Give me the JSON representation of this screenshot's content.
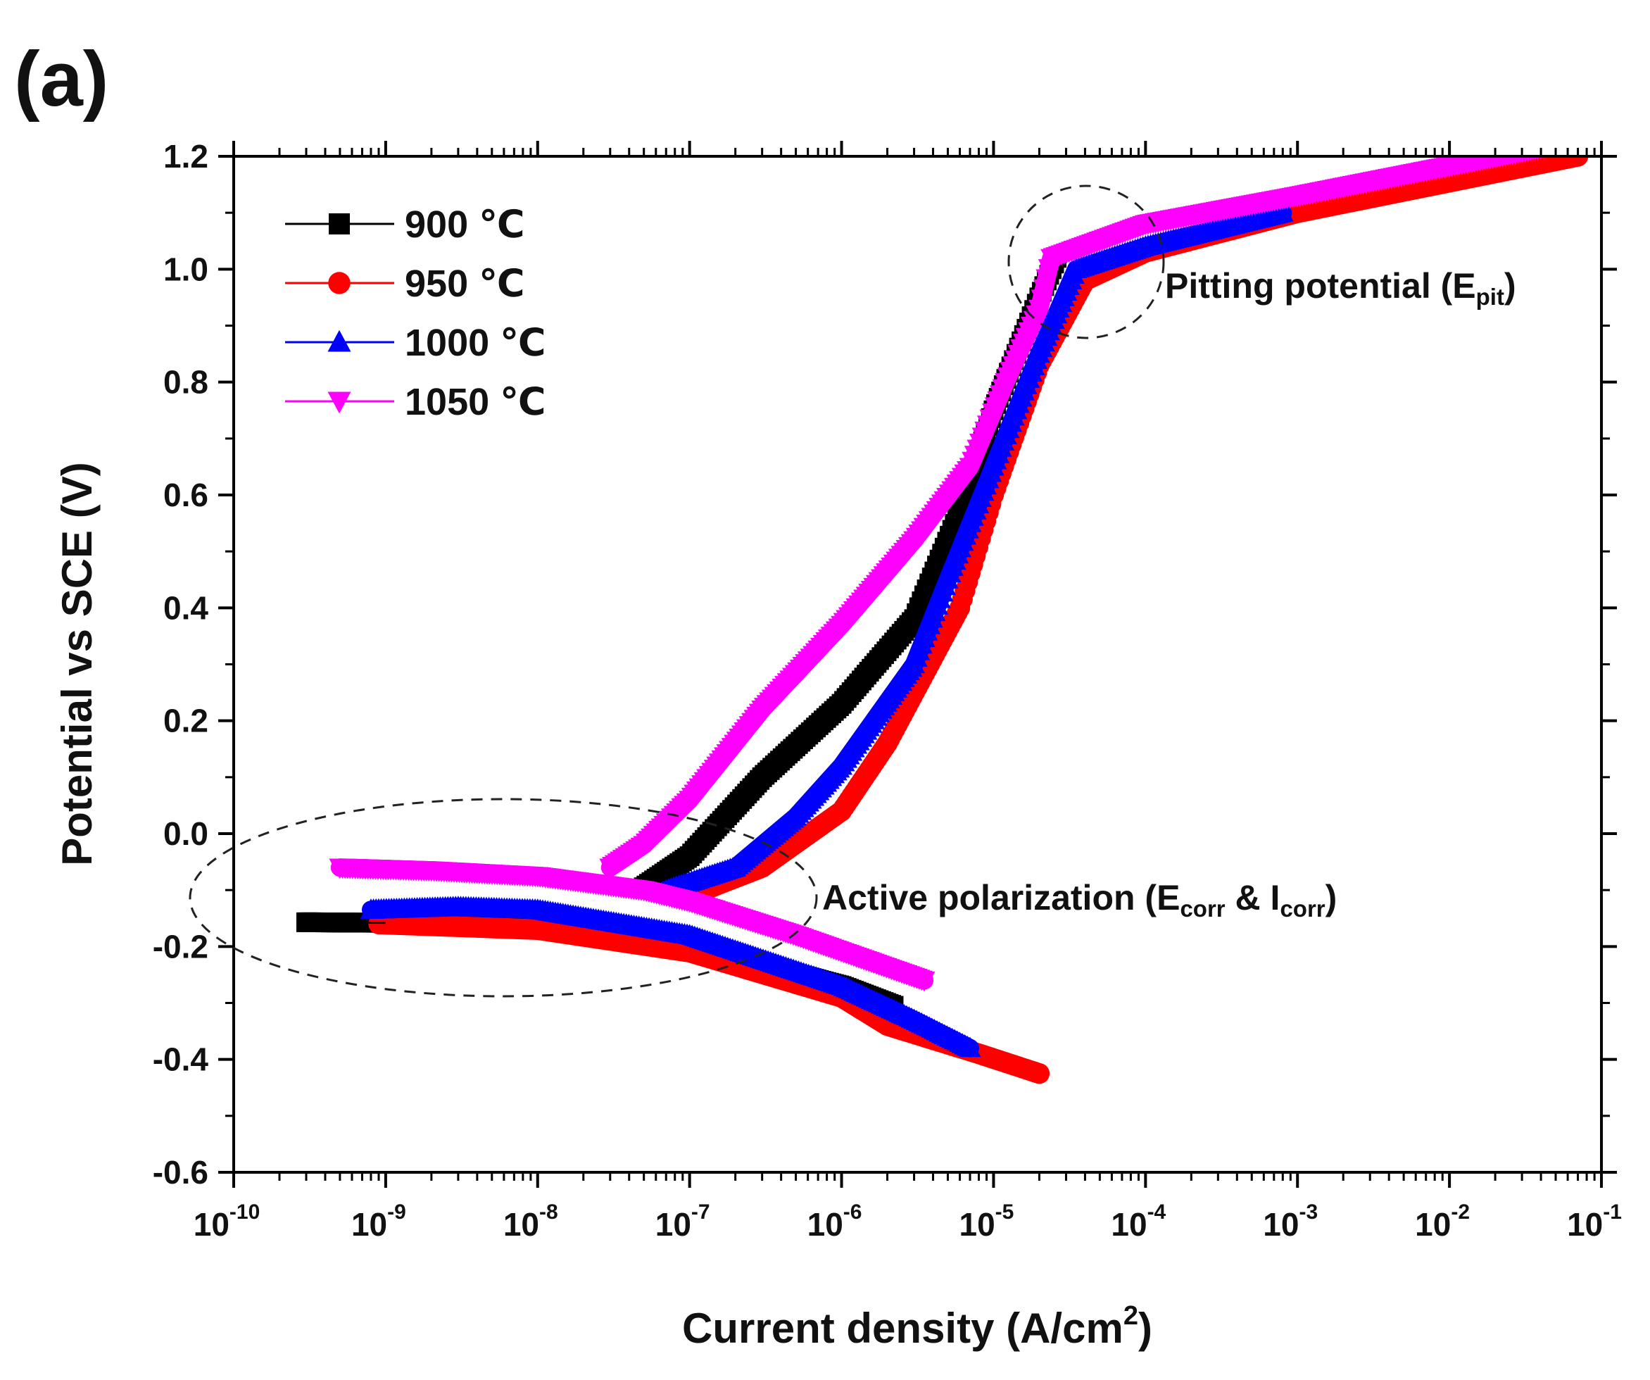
{
  "panel_label": "(a)",
  "chart_data": {
    "type": "line",
    "x_scale": "log",
    "xlim": [
      1e-10,
      0.1
    ],
    "ylim": [
      -0.6,
      1.2
    ],
    "xlabel": "Current density (A/cm",
    "xlabel_sup": "2",
    "xlabel_close": ")",
    "ylabel": "Potential vs SCE (V)",
    "x_tick_labels": [
      {
        "base": "10",
        "exp": "-10",
        "value": 1e-10
      },
      {
        "base": "10",
        "exp": "-9",
        "value": 1e-09
      },
      {
        "base": "10",
        "exp": "-8",
        "value": 1e-08
      },
      {
        "base": "10",
        "exp": "-7",
        "value": 1e-07
      },
      {
        "base": "10",
        "exp": "-6",
        "value": 1e-06
      },
      {
        "base": "10",
        "exp": "-5",
        "value": 1e-05
      },
      {
        "base": "10",
        "exp": "-4",
        "value": 0.0001
      },
      {
        "base": "10",
        "exp": "-3",
        "value": 0.001
      },
      {
        "base": "10",
        "exp": "-2",
        "value": 0.01
      },
      {
        "base": "10",
        "exp": "-1",
        "value": 0.1
      }
    ],
    "y_tick_labels": [
      {
        "label": "1.2",
        "value": 1.2
      },
      {
        "label": "1.0",
        "value": 1.0
      },
      {
        "label": "0.8",
        "value": 0.8
      },
      {
        "label": "0.6",
        "value": 0.6
      },
      {
        "label": "0.4",
        "value": 0.4
      },
      {
        "label": "0.2",
        "value": 0.2
      },
      {
        "label": "0.0",
        "value": 0.0
      },
      {
        "label": "-0.2",
        "value": -0.2
      },
      {
        "label": "-0.4",
        "value": -0.4
      },
      {
        "label": "-0.6",
        "value": -0.6
      }
    ],
    "legend_position": "top-left",
    "series": [
      {
        "name": "900 ℃",
        "color": "#000000",
        "marker": "square",
        "cathodic": [
          [
            3e-10,
            -0.157
          ],
          [
            1e-09,
            -0.158
          ],
          [
            1e-08,
            -0.163
          ],
          [
            1e-07,
            -0.2
          ],
          [
            1e-06,
            -0.27
          ],
          [
            2.2e-06,
            -0.305
          ]
        ],
        "anodic": [
          [
            5e-08,
            -0.095
          ],
          [
            1e-07,
            -0.04
          ],
          [
            3e-07,
            0.1
          ],
          [
            1e-06,
            0.23
          ],
          [
            3e-06,
            0.38
          ],
          [
            6e-06,
            0.57
          ],
          [
            1e-05,
            0.75
          ],
          [
            2e-05,
            0.95
          ],
          [
            2.6e-05,
            1.02
          ]
        ]
      },
      {
        "name": "950 ℃",
        "color": "#ff0000",
        "marker": "circle",
        "cathodic": [
          [
            9e-10,
            -0.16
          ],
          [
            1e-08,
            -0.17
          ],
          [
            1e-07,
            -0.21
          ],
          [
            1e-06,
            -0.29
          ],
          [
            2e-06,
            -0.34
          ],
          [
            8e-06,
            -0.39
          ],
          [
            2e-05,
            -0.425
          ]
        ],
        "anodic": [
          [
            1e-07,
            -0.11
          ],
          [
            3e-07,
            -0.06
          ],
          [
            1e-06,
            0.04
          ],
          [
            2e-06,
            0.16
          ],
          [
            6e-06,
            0.4
          ],
          [
            1e-05,
            0.6
          ],
          [
            2e-05,
            0.83
          ],
          [
            4e-05,
            0.98
          ],
          [
            0.0001,
            1.03
          ],
          [
            0.001,
            1.1
          ],
          [
            0.07,
            1.2
          ]
        ]
      },
      {
        "name": "1000 ℃",
        "color": "#0000ff",
        "marker": "triangle-up",
        "cathodic": [
          [
            8e-10,
            -0.135
          ],
          [
            3e-09,
            -0.13
          ],
          [
            1e-08,
            -0.135
          ],
          [
            1e-07,
            -0.18
          ],
          [
            1e-06,
            -0.27
          ],
          [
            3e-06,
            -0.33
          ],
          [
            7e-06,
            -0.38
          ]
        ],
        "anodic": [
          [
            7e-08,
            -0.1
          ],
          [
            2e-07,
            -0.06
          ],
          [
            5e-07,
            0.03
          ],
          [
            1e-06,
            0.12
          ],
          [
            3e-06,
            0.3
          ],
          [
            5e-06,
            0.45
          ],
          [
            1e-05,
            0.65
          ],
          [
            2e-05,
            0.85
          ],
          [
            3.5e-05,
            1.0
          ],
          [
            0.0001,
            1.04
          ],
          [
            0.0008,
            1.1
          ]
        ]
      },
      {
        "name": "1050 ℃",
        "color": "#ff00ff",
        "marker": "triangle-down",
        "cathodic": [
          [
            5e-10,
            -0.06
          ],
          [
            2e-09,
            -0.065
          ],
          [
            1e-08,
            -0.075
          ],
          [
            5e-08,
            -0.1
          ],
          [
            1e-07,
            -0.12
          ],
          [
            5e-07,
            -0.18
          ],
          [
            3.5e-06,
            -0.26
          ]
        ],
        "anodic": [
          [
            3e-08,
            -0.06
          ],
          [
            5e-08,
            -0.02
          ],
          [
            1e-07,
            0.06
          ],
          [
            3e-07,
            0.22
          ],
          [
            1e-06,
            0.37
          ],
          [
            3e-06,
            0.52
          ],
          [
            7e-06,
            0.65
          ],
          [
            1.2e-05,
            0.8
          ],
          [
            2e-05,
            0.93
          ],
          [
            2.4e-05,
            1.02
          ],
          [
            0.0001,
            1.08
          ],
          [
            0.001,
            1.13
          ],
          [
            0.05,
            1.22
          ]
        ]
      }
    ],
    "annotations": [
      {
        "text": "Pitting potential (E",
        "sub": "pit",
        "close": ")"
      },
      {
        "text": "Active polarization (E",
        "sub": "corr",
        "mid": " & I",
        "sub2": "corr",
        "close": ")"
      }
    ]
  }
}
